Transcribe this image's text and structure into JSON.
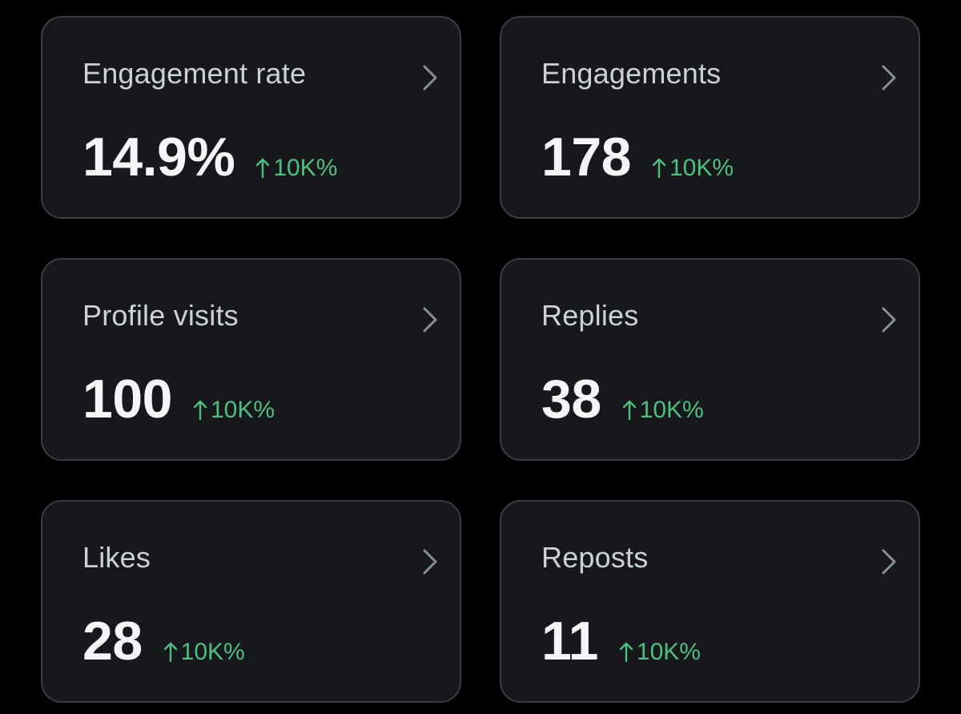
{
  "colors": {
    "background": "#000000",
    "card": "#16181c",
    "card_border": "#3a3d43",
    "label": "#cdd0d4",
    "value": "#f4f5f6",
    "positive": "#4fbf7f"
  },
  "cards": [
    {
      "label": "Engagement rate",
      "value": "14.9%",
      "delta": "10K%",
      "delta_icon": "arrow-up-icon",
      "nav_icon": "chevron-right-icon"
    },
    {
      "label": "Engagements",
      "value": "178",
      "delta": "10K%",
      "delta_icon": "arrow-up-icon",
      "nav_icon": "chevron-right-icon"
    },
    {
      "label": "Profile visits",
      "value": "100",
      "delta": "10K%",
      "delta_icon": "arrow-up-icon",
      "nav_icon": "chevron-right-icon"
    },
    {
      "label": "Replies",
      "value": "38",
      "delta": "10K%",
      "delta_icon": "arrow-up-icon",
      "nav_icon": "chevron-right-icon"
    },
    {
      "label": "Likes",
      "value": "28",
      "delta": "10K%",
      "delta_icon": "arrow-up-icon",
      "nav_icon": "chevron-right-icon"
    },
    {
      "label": "Reposts",
      "value": "11",
      "delta": "10K%",
      "delta_icon": "arrow-up-icon",
      "nav_icon": "chevron-right-icon"
    }
  ]
}
